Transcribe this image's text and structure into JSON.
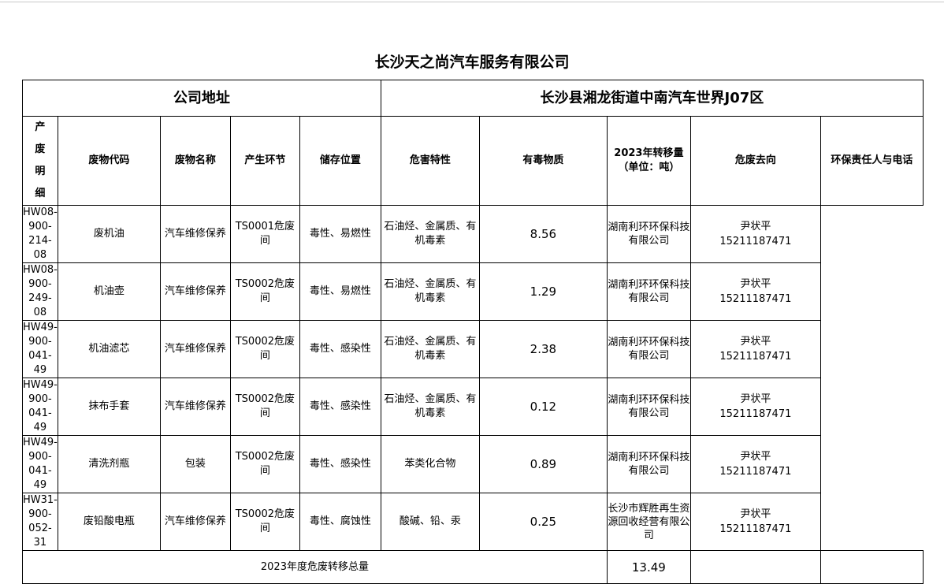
{
  "title": "长沙天之尚汽车服务有限公司",
  "address_label": "公司地址",
  "address_value": "长沙县湘龙街道中南汽车世界J07区",
  "side_label": [
    "产",
    "废",
    "明",
    "细"
  ],
  "headers": [
    "废物代码",
    "废物名称",
    "产生环节",
    "储存位置",
    "危害特性",
    "有毒物质",
    "2023年转移量",
    "（单位：吨）",
    "危废去向",
    "环保责任人与电话"
  ],
  "rows": [
    {
      "code": "HW08-900-214-08",
      "name": "废机油",
      "stage": "汽车维修保养",
      "storage": "TS0001危废间",
      "hazard": "毒性、易燃性",
      "toxic": "石油烃、金属质、有机毒素",
      "amount": "8.56",
      "dest": "湖南利环环保科技有限公司",
      "person": "尹状平",
      "phone": "15211187471"
    },
    {
      "code": "HW08-900-249-08",
      "name": "机油壶",
      "stage": "汽车维修保养",
      "storage": "TS0002危废间",
      "hazard": "毒性、易燃性",
      "toxic": "石油烃、金属质、有机毒素",
      "amount": "1.29",
      "dest": "湖南利环环保科技有限公司",
      "person": "尹状平",
      "phone": "15211187471"
    },
    {
      "code": "HW49-900-041-49",
      "name": "机油滤芯",
      "stage": "汽车维修保养",
      "storage": "TS0002危废间",
      "hazard": "毒性、感染性",
      "toxic": "石油烃、金属质、有机毒素",
      "amount": "2.38",
      "dest": "湖南利环环保科技有限公司",
      "person": "尹状平",
      "phone": "15211187471"
    },
    {
      "code": "HW49-900-041-49",
      "name": "抹布手套",
      "stage": "汽车维修保养",
      "storage": "TS0002危废间",
      "hazard": "毒性、感染性",
      "toxic": "石油烃、金属质、有机毒素",
      "amount": "0.12",
      "dest": "湖南利环环保科技有限公司",
      "person": "尹状平",
      "phone": "15211187471"
    },
    {
      "code": "HW49-900-041-49",
      "name": "清洗剂瓶",
      "stage": "包装",
      "storage": "TS0002危废间",
      "hazard": "毒性、感染性",
      "toxic": "苯类化合物",
      "amount": "0.89",
      "dest": "湖南利环环保科技有限公司",
      "person": "尹状平",
      "phone": "15211187471"
    },
    {
      "code": "HW31-900-052-31",
      "name": "废铅酸电瓶",
      "stage": "汽车维修保养",
      "storage": "TS0002危废间",
      "hazard": "毒性、腐蚀性",
      "toxic": "酸碱、铅、汞",
      "amount": "0.25",
      "dest": "长沙市辉胜再生资源回收经营有限公司",
      "person": "尹状平",
      "phone": "15211187471"
    }
  ],
  "total_label": "2023年度危废转移总量",
  "total_value": "13.49"
}
